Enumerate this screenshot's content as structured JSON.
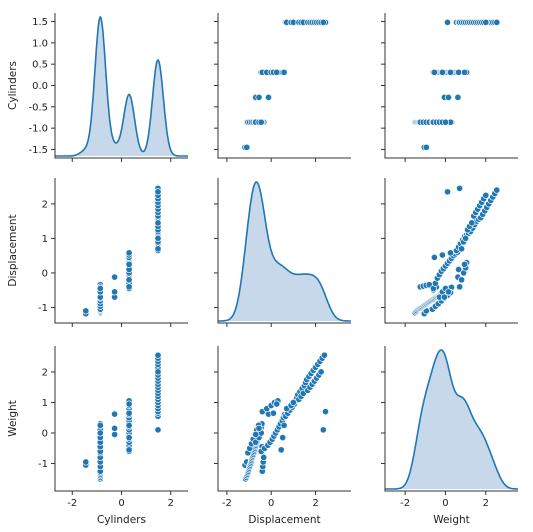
{
  "chart_data": {
    "type": "pairplot",
    "variables": [
      "Cylinders",
      "Displacement",
      "Weight"
    ],
    "grid": false,
    "colors": {
      "marker": "#1f77b4",
      "kde_fill": "#c6d8ea",
      "spine": "#333333"
    },
    "diagonal": "kde",
    "offdiagonal": "scatter",
    "axis_ranges": {
      "Cylinders": [
        -1.7,
        1.7
      ],
      "Displacement": [
        -1.45,
        2.75
      ],
      "Weight": [
        -1.9,
        2.85
      ]
    },
    "axis_ticks": {
      "Cylinders": {
        "row_ticks": [
          "-1.5",
          "-1.0",
          "-0.5",
          "0.0",
          "0.5",
          "1.0",
          "1.5"
        ],
        "col_ticks": [
          "-2",
          "0",
          "2"
        ],
        "col_range": [
          -2.7,
          2.7
        ]
      },
      "Displacement": {
        "row_ticks": [
          "-1",
          "0",
          "1",
          "2"
        ],
        "col_ticks": [
          "-2",
          "0",
          "2"
        ],
        "col_range": [
          -2.4,
          3.6
        ]
      },
      "Weight": {
        "row_ticks": [
          "-1",
          "0",
          "1",
          "2"
        ],
        "col_ticks": [
          "-2",
          "0",
          "2"
        ],
        "col_range": [
          -3.0,
          3.6
        ]
      }
    },
    "observations": {
      "Cylinders": [
        -1.45,
        -1.45,
        -0.86,
        -0.86,
        -0.86,
        -0.86,
        -0.86,
        -0.86,
        -0.86,
        -0.86,
        -0.86,
        -0.86,
        -0.86,
        -0.86,
        -0.86,
        -0.86,
        -0.86,
        -0.86,
        -0.86,
        -0.86,
        -0.86,
        -0.86,
        -0.86,
        -0.86,
        -0.86,
        -0.86,
        -0.86,
        -0.86,
        -0.86,
        -0.86,
        -0.86,
        -0.86,
        -0.86,
        -0.86,
        -0.86,
        -0.86,
        -0.86,
        -0.86,
        -0.86,
        -0.86,
        -0.86,
        -0.86,
        -0.86,
        -0.86,
        -0.86,
        -0.86,
        -0.86,
        -0.86,
        -0.86,
        -0.86,
        -0.86,
        -0.86,
        -0.86,
        -0.86,
        -0.28,
        -0.28,
        -0.28,
        0.31,
        0.31,
        0.31,
        0.31,
        0.31,
        0.31,
        0.31,
        0.31,
        0.31,
        0.31,
        0.31,
        0.31,
        0.31,
        0.31,
        0.31,
        0.31,
        0.31,
        0.31,
        0.31,
        0.31,
        0.31,
        0.31,
        0.31,
        1.48,
        1.48,
        1.48,
        1.48,
        1.48,
        1.48,
        1.48,
        1.48,
        1.48,
        1.48,
        1.48,
        1.48,
        1.48,
        1.48,
        1.48,
        1.48,
        1.48,
        1.48,
        1.48,
        1.48,
        1.48,
        1.48,
        1.48,
        1.48,
        1.48,
        1.48,
        1.48,
        1.48,
        1.48,
        1.48,
        1.48,
        1.48,
        1.48,
        1.48,
        1.48,
        1.48
      ],
      "Displacement": [
        -1.18,
        -1.1,
        -1.15,
        -1.12,
        -1.09,
        -1.06,
        -1.04,
        -1.02,
        -1.0,
        -0.98,
        -0.96,
        -0.94,
        -0.92,
        -0.9,
        -0.88,
        -0.86,
        -0.84,
        -0.82,
        -0.8,
        -0.78,
        -0.76,
        -0.74,
        -0.72,
        -0.7,
        -0.68,
        -0.66,
        -0.64,
        -0.62,
        -0.6,
        -0.58,
        -0.56,
        -0.54,
        -0.52,
        -0.5,
        -0.48,
        -0.46,
        -0.44,
        -0.42,
        -0.4,
        -0.38,
        -0.36,
        -0.34,
        -1.05,
        -0.97,
        -0.89,
        -0.81,
        -0.73,
        -0.65,
        -0.57,
        -0.49,
        -0.41,
        -0.7,
        -0.55,
        -0.45,
        -0.7,
        -0.55,
        -0.12,
        -0.45,
        -0.3,
        -0.15,
        -0.05,
        0.05,
        0.12,
        0.2,
        0.28,
        0.35,
        0.42,
        0.5,
        0.55,
        0.6,
        -0.4,
        -0.2,
        0.0,
        0.15,
        0.3,
        0.45,
        0.52,
        0.58,
        0.1,
        0.25,
        0.65,
        0.75,
        0.85,
        0.95,
        1.05,
        1.1,
        1.15,
        1.2,
        1.3,
        1.4,
        1.5,
        1.55,
        1.6,
        1.7,
        1.8,
        1.9,
        2.0,
        2.1,
        2.2,
        2.3,
        2.4,
        2.45,
        0.7,
        0.9,
        1.0,
        1.25,
        1.35,
        1.45,
        1.65,
        1.75,
        1.85,
        1.95,
        2.05,
        2.15,
        2.25,
        2.35
      ],
      "Weight": [
        -1.05,
        -0.95,
        -1.5,
        -1.45,
        -1.4,
        -1.35,
        -1.3,
        -1.25,
        -1.2,
        -1.15,
        -1.1,
        -1.05,
        -1.0,
        -0.95,
        -0.9,
        -0.85,
        -0.8,
        -0.75,
        -0.7,
        -0.65,
        -0.6,
        -0.55,
        -0.5,
        -0.45,
        -0.4,
        -0.35,
        -0.3,
        -0.25,
        -0.2,
        -0.15,
        -0.1,
        -0.05,
        0.0,
        0.05,
        0.1,
        0.15,
        0.2,
        0.3,
        -1.25,
        -1.1,
        -0.95,
        -0.8,
        -0.65,
        -0.5,
        -0.35,
        -0.2,
        -0.05,
        0.1,
        0.25,
        -0.6,
        -0.45,
        -0.3,
        -0.15,
        0.0,
        -0.05,
        0.15,
        0.62,
        -0.6,
        -0.5,
        -0.4,
        -0.3,
        -0.2,
        -0.1,
        0.0,
        0.1,
        0.2,
        0.3,
        0.4,
        0.5,
        0.6,
        0.7,
        0.8,
        0.9,
        1.0,
        1.05,
        -0.55,
        -0.15,
        0.25,
        0.65,
        0.95,
        0.55,
        0.65,
        0.75,
        0.85,
        0.95,
        1.05,
        1.15,
        1.25,
        1.35,
        1.45,
        1.55,
        1.65,
        1.75,
        1.85,
        1.95,
        2.05,
        2.15,
        2.25,
        2.35,
        2.45,
        2.55,
        0.7,
        0.8,
        0.9,
        1.0,
        1.1,
        1.2,
        1.3,
        1.4,
        1.5,
        1.6,
        1.7,
        1.8,
        1.9,
        2.0,
        0.1
      ]
    }
  }
}
